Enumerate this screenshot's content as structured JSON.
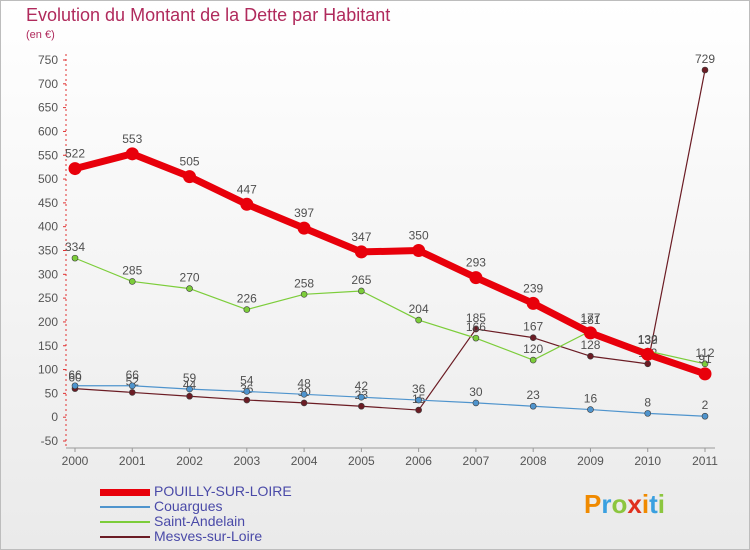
{
  "title": "Evolution du Montant de la Dette par Habitant",
  "unit": "(en €)",
  "logo": {
    "text": "Proxiti",
    "letter_colors": [
      "#f08a00",
      "#3aa0e0",
      "#8cc63f",
      "#e0301e",
      "#f08a00",
      "#3aa0e0",
      "#8cc63f"
    ]
  },
  "chart_data": {
    "type": "line",
    "title": "Evolution du Montant de la Dette par Habitant",
    "ylabel": "(en €)",
    "x": [
      "2000",
      "2001",
      "2002",
      "2003",
      "2004",
      "2005",
      "2006",
      "2007",
      "2008",
      "2009",
      "2010",
      "2011"
    ],
    "y_ticks": [
      -50,
      0,
      50,
      100,
      150,
      200,
      250,
      300,
      350,
      400,
      450,
      500,
      550,
      600,
      650,
      700,
      750
    ],
    "ylim": [
      -50,
      750
    ],
    "grid": false,
    "legend_position": "bottom-left",
    "series": [
      {
        "name": "Mesves-sur-Loire",
        "color": "#6b1c24",
        "values": [
          60,
          52,
          44,
          36,
          30,
          23,
          15,
          185,
          167,
          128,
          112,
          729
        ],
        "labels": [
          "60",
          "52",
          "44",
          "36",
          "30",
          "23",
          "15",
          "185",
          "167",
          "128",
          "112",
          "729"
        ]
      },
      {
        "name": "Couargues",
        "color": "#4f94cd",
        "values": [
          66,
          66,
          59,
          54,
          48,
          42,
          36,
          30,
          23,
          16,
          8,
          2
        ],
        "labels": [
          "66",
          "66",
          "59",
          "54",
          "48",
          "42",
          "36",
          "30",
          "23",
          "16",
          "8",
          "2"
        ]
      },
      {
        "name": "Saint-Andelain",
        "color": "#7ccd3a",
        "values": [
          334,
          285,
          270,
          226,
          258,
          265,
          204,
          166,
          120,
          181,
          139,
          112
        ],
        "labels": [
          "334",
          "285",
          "270",
          "226",
          "258",
          "265",
          "204",
          "166",
          "120",
          "181",
          "139",
          "112"
        ]
      },
      {
        "name": "POUILLY-SUR-LOIRE",
        "color": "#e8000b",
        "values": [
          522,
          553,
          505,
          447,
          397,
          347,
          350,
          293,
          239,
          177,
          132,
          91
        ],
        "labels": [
          "522",
          "553",
          "505",
          "447",
          "397",
          "347",
          "350",
          "293",
          "239",
          "177",
          "132",
          "91"
        ]
      }
    ],
    "legend_order": [
      "POUILLY-SUR-LOIRE",
      "Couargues",
      "Saint-Andelain",
      "Mesves-sur-Loire"
    ]
  }
}
